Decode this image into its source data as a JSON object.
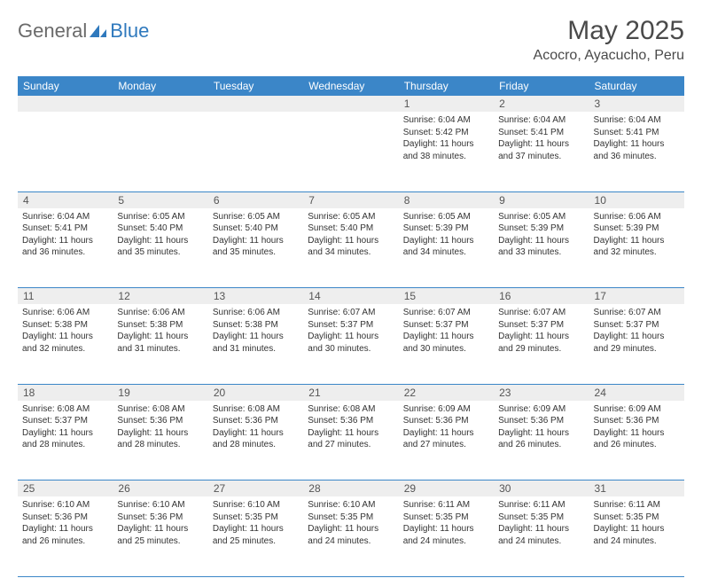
{
  "brand": {
    "part1": "General",
    "part2": "Blue"
  },
  "title": "May 2025",
  "location": "Acocro, Ayacucho, Peru",
  "colors": {
    "header_bg": "#3b86c8",
    "header_text": "#ffffff",
    "daynum_bg": "#eeeeee",
    "border": "#3b86c8",
    "body_text": "#333333",
    "title_text": "#4a4a4a",
    "logo_gray": "#6a6a6a",
    "logo_blue": "#2f79bd"
  },
  "weekdays": [
    "Sunday",
    "Monday",
    "Tuesday",
    "Wednesday",
    "Thursday",
    "Friday",
    "Saturday"
  ],
  "weeks": [
    [
      null,
      null,
      null,
      null,
      {
        "n": "1",
        "sunrise": "6:04 AM",
        "sunset": "5:42 PM",
        "daylight": "11 hours and 38 minutes."
      },
      {
        "n": "2",
        "sunrise": "6:04 AM",
        "sunset": "5:41 PM",
        "daylight": "11 hours and 37 minutes."
      },
      {
        "n": "3",
        "sunrise": "6:04 AM",
        "sunset": "5:41 PM",
        "daylight": "11 hours and 36 minutes."
      }
    ],
    [
      {
        "n": "4",
        "sunrise": "6:04 AM",
        "sunset": "5:41 PM",
        "daylight": "11 hours and 36 minutes."
      },
      {
        "n": "5",
        "sunrise": "6:05 AM",
        "sunset": "5:40 PM",
        "daylight": "11 hours and 35 minutes."
      },
      {
        "n": "6",
        "sunrise": "6:05 AM",
        "sunset": "5:40 PM",
        "daylight": "11 hours and 35 minutes."
      },
      {
        "n": "7",
        "sunrise": "6:05 AM",
        "sunset": "5:40 PM",
        "daylight": "11 hours and 34 minutes."
      },
      {
        "n": "8",
        "sunrise": "6:05 AM",
        "sunset": "5:39 PM",
        "daylight": "11 hours and 34 minutes."
      },
      {
        "n": "9",
        "sunrise": "6:05 AM",
        "sunset": "5:39 PM",
        "daylight": "11 hours and 33 minutes."
      },
      {
        "n": "10",
        "sunrise": "6:06 AM",
        "sunset": "5:39 PM",
        "daylight": "11 hours and 32 minutes."
      }
    ],
    [
      {
        "n": "11",
        "sunrise": "6:06 AM",
        "sunset": "5:38 PM",
        "daylight": "11 hours and 32 minutes."
      },
      {
        "n": "12",
        "sunrise": "6:06 AM",
        "sunset": "5:38 PM",
        "daylight": "11 hours and 31 minutes."
      },
      {
        "n": "13",
        "sunrise": "6:06 AM",
        "sunset": "5:38 PM",
        "daylight": "11 hours and 31 minutes."
      },
      {
        "n": "14",
        "sunrise": "6:07 AM",
        "sunset": "5:37 PM",
        "daylight": "11 hours and 30 minutes."
      },
      {
        "n": "15",
        "sunrise": "6:07 AM",
        "sunset": "5:37 PM",
        "daylight": "11 hours and 30 minutes."
      },
      {
        "n": "16",
        "sunrise": "6:07 AM",
        "sunset": "5:37 PM",
        "daylight": "11 hours and 29 minutes."
      },
      {
        "n": "17",
        "sunrise": "6:07 AM",
        "sunset": "5:37 PM",
        "daylight": "11 hours and 29 minutes."
      }
    ],
    [
      {
        "n": "18",
        "sunrise": "6:08 AM",
        "sunset": "5:37 PM",
        "daylight": "11 hours and 28 minutes."
      },
      {
        "n": "19",
        "sunrise": "6:08 AM",
        "sunset": "5:36 PM",
        "daylight": "11 hours and 28 minutes."
      },
      {
        "n": "20",
        "sunrise": "6:08 AM",
        "sunset": "5:36 PM",
        "daylight": "11 hours and 28 minutes."
      },
      {
        "n": "21",
        "sunrise": "6:08 AM",
        "sunset": "5:36 PM",
        "daylight": "11 hours and 27 minutes."
      },
      {
        "n": "22",
        "sunrise": "6:09 AM",
        "sunset": "5:36 PM",
        "daylight": "11 hours and 27 minutes."
      },
      {
        "n": "23",
        "sunrise": "6:09 AM",
        "sunset": "5:36 PM",
        "daylight": "11 hours and 26 minutes."
      },
      {
        "n": "24",
        "sunrise": "6:09 AM",
        "sunset": "5:36 PM",
        "daylight": "11 hours and 26 minutes."
      }
    ],
    [
      {
        "n": "25",
        "sunrise": "6:10 AM",
        "sunset": "5:36 PM",
        "daylight": "11 hours and 26 minutes."
      },
      {
        "n": "26",
        "sunrise": "6:10 AM",
        "sunset": "5:36 PM",
        "daylight": "11 hours and 25 minutes."
      },
      {
        "n": "27",
        "sunrise": "6:10 AM",
        "sunset": "5:35 PM",
        "daylight": "11 hours and 25 minutes."
      },
      {
        "n": "28",
        "sunrise": "6:10 AM",
        "sunset": "5:35 PM",
        "daylight": "11 hours and 24 minutes."
      },
      {
        "n": "29",
        "sunrise": "6:11 AM",
        "sunset": "5:35 PM",
        "daylight": "11 hours and 24 minutes."
      },
      {
        "n": "30",
        "sunrise": "6:11 AM",
        "sunset": "5:35 PM",
        "daylight": "11 hours and 24 minutes."
      },
      {
        "n": "31",
        "sunrise": "6:11 AM",
        "sunset": "5:35 PM",
        "daylight": "11 hours and 24 minutes."
      }
    ]
  ],
  "labels": {
    "sunrise": "Sunrise:",
    "sunset": "Sunset:",
    "daylight": "Daylight:"
  }
}
